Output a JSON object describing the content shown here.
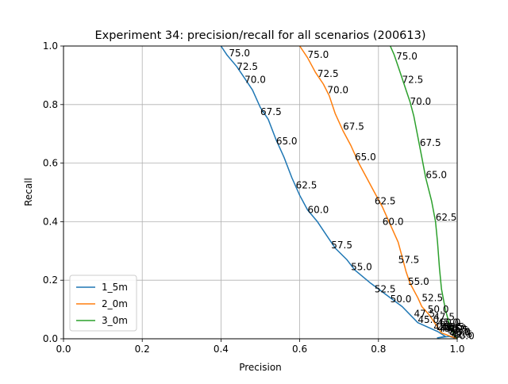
{
  "chart_data": {
    "type": "line",
    "title": "Experiment 34: precision/recall for all scenarios (200613)",
    "xlabel": "Precision",
    "ylabel": "Recall",
    "xlim": [
      0.0,
      1.0
    ],
    "ylim": [
      0.0,
      1.0
    ],
    "xticks": [
      "0.0",
      "0.2",
      "0.4",
      "0.6",
      "0.8",
      "1.0"
    ],
    "yticks": [
      "0.0",
      "0.2",
      "0.4",
      "0.6",
      "0.8",
      "1.0"
    ],
    "grid": true,
    "legend_position": "lower-left",
    "series": [
      {
        "name": "1_5m",
        "color": "#1f77b4",
        "points": [
          [
            0.4,
            1.0
          ],
          [
            0.415,
            0.97
          ],
          [
            0.44,
            0.93
          ],
          [
            0.46,
            0.89
          ],
          [
            0.48,
            0.85
          ],
          [
            0.5,
            0.79
          ],
          [
            0.52,
            0.75
          ],
          [
            0.54,
            0.68
          ],
          [
            0.56,
            0.62
          ],
          [
            0.58,
            0.55
          ],
          [
            0.6,
            0.49
          ],
          [
            0.62,
            0.44
          ],
          [
            0.645,
            0.4
          ],
          [
            0.67,
            0.35
          ],
          [
            0.69,
            0.31
          ],
          [
            0.72,
            0.27
          ],
          [
            0.74,
            0.235
          ],
          [
            0.78,
            0.19
          ],
          [
            0.82,
            0.15
          ],
          [
            0.86,
            0.11
          ],
          [
            0.9,
            0.055
          ],
          [
            0.95,
            0.025
          ],
          [
            0.97,
            0.008
          ],
          [
            0.95,
            0.003
          ],
          [
            0.98,
            0.008
          ],
          [
            1.0,
            0.0
          ]
        ],
        "labels": [
          {
            "text": "75.0",
            "x": 0.42,
            "y": 0.975
          },
          {
            "text": "72.5",
            "x": 0.44,
            "y": 0.93
          },
          {
            "text": "70.0",
            "x": 0.46,
            "y": 0.885
          },
          {
            "text": "67.5",
            "x": 0.5,
            "y": 0.775
          },
          {
            "text": "65.0",
            "x": 0.54,
            "y": 0.675
          },
          {
            "text": "62.5",
            "x": 0.59,
            "y": 0.525
          },
          {
            "text": "60.0",
            "x": 0.62,
            "y": 0.44
          },
          {
            "text": "57.5",
            "x": 0.68,
            "y": 0.32
          },
          {
            "text": "55.0",
            "x": 0.73,
            "y": 0.245
          },
          {
            "text": "52.5",
            "x": 0.79,
            "y": 0.17
          },
          {
            "text": "50.0",
            "x": 0.83,
            "y": 0.135
          },
          {
            "text": "47.5",
            "x": 0.89,
            "y": 0.085
          },
          {
            "text": "45.0",
            "x": 0.9,
            "y": 0.065
          },
          {
            "text": "42.5",
            "x": 0.94,
            "y": 0.04
          },
          {
            "text": "40.0",
            "x": 0.95,
            "y": 0.035
          }
        ]
      },
      {
        "name": "2_0m",
        "color": "#ff7f0e",
        "points": [
          [
            0.6,
            1.0
          ],
          [
            0.62,
            0.96
          ],
          [
            0.64,
            0.91
          ],
          [
            0.66,
            0.87
          ],
          [
            0.675,
            0.83
          ],
          [
            0.69,
            0.77
          ],
          [
            0.71,
            0.71
          ],
          [
            0.73,
            0.66
          ],
          [
            0.75,
            0.6
          ],
          [
            0.77,
            0.55
          ],
          [
            0.79,
            0.5
          ],
          [
            0.81,
            0.45
          ],
          [
            0.83,
            0.39
          ],
          [
            0.85,
            0.33
          ],
          [
            0.86,
            0.28
          ],
          [
            0.87,
            0.23
          ],
          [
            0.88,
            0.19
          ],
          [
            0.9,
            0.14
          ],
          [
            0.91,
            0.11
          ],
          [
            0.93,
            0.08
          ],
          [
            0.94,
            0.06
          ],
          [
            0.95,
            0.04
          ],
          [
            0.96,
            0.02
          ],
          [
            0.98,
            0.01
          ],
          [
            1.0,
            0.0
          ]
        ],
        "labels": [
          {
            "text": "75.0",
            "x": 0.62,
            "y": 0.97
          },
          {
            "text": "72.5",
            "x": 0.645,
            "y": 0.905
          },
          {
            "text": "70.0",
            "x": 0.67,
            "y": 0.85
          },
          {
            "text": "67.5",
            "x": 0.71,
            "y": 0.725
          },
          {
            "text": "65.0",
            "x": 0.74,
            "y": 0.62
          },
          {
            "text": "62.5",
            "x": 0.79,
            "y": 0.47
          },
          {
            "text": "60.0",
            "x": 0.81,
            "y": 0.4
          },
          {
            "text": "57.5",
            "x": 0.85,
            "y": 0.27
          },
          {
            "text": "55.0",
            "x": 0.875,
            "y": 0.195
          },
          {
            "text": "52.5",
            "x": 0.91,
            "y": 0.14
          },
          {
            "text": "50.0",
            "x": 0.925,
            "y": 0.1
          },
          {
            "text": "47.5",
            "x": 0.94,
            "y": 0.075
          },
          {
            "text": "45.0",
            "x": 0.95,
            "y": 0.055
          },
          {
            "text": "42.5",
            "x": 0.96,
            "y": 0.04
          },
          {
            "text": "40.0",
            "x": 0.97,
            "y": 0.035
          }
        ]
      },
      {
        "name": "3_0m",
        "color": "#2ca02c",
        "points": [
          [
            0.83,
            1.0
          ],
          [
            0.84,
            0.97
          ],
          [
            0.85,
            0.93
          ],
          [
            0.86,
            0.89
          ],
          [
            0.87,
            0.85
          ],
          [
            0.88,
            0.81
          ],
          [
            0.89,
            0.76
          ],
          [
            0.9,
            0.69
          ],
          [
            0.91,
            0.62
          ],
          [
            0.92,
            0.55
          ],
          [
            0.935,
            0.47
          ],
          [
            0.945,
            0.4
          ],
          [
            0.95,
            0.33
          ],
          [
            0.955,
            0.24
          ],
          [
            0.96,
            0.17
          ],
          [
            0.97,
            0.1
          ],
          [
            0.98,
            0.05
          ],
          [
            0.99,
            0.02
          ],
          [
            1.0,
            0.0
          ]
        ],
        "labels": [
          {
            "text": "75.0",
            "x": 0.845,
            "y": 0.965
          },
          {
            "text": "72.5",
            "x": 0.86,
            "y": 0.885
          },
          {
            "text": "70.0",
            "x": 0.88,
            "y": 0.81
          },
          {
            "text": "67.5",
            "x": 0.905,
            "y": 0.67
          },
          {
            "text": "65.0",
            "x": 0.92,
            "y": 0.56
          },
          {
            "text": "62.5",
            "x": 0.945,
            "y": 0.415
          },
          {
            "text": "60.0",
            "x": 0.955,
            "y": 0.055
          },
          {
            "text": "57.5",
            "x": 0.965,
            "y": 0.04
          },
          {
            "text": "55.0",
            "x": 0.97,
            "y": 0.035
          },
          {
            "text": "52.5",
            "x": 0.975,
            "y": 0.03
          },
          {
            "text": "50.0",
            "x": 0.98,
            "y": 0.025
          },
          {
            "text": "47.5",
            "x": 0.955,
            "y": 0.035
          },
          {
            "text": "45.0",
            "x": 0.98,
            "y": 0.02
          },
          {
            "text": "42.5",
            "x": 0.985,
            "y": 0.015
          },
          {
            "text": "40.0",
            "x": 0.99,
            "y": 0.01
          }
        ]
      }
    ]
  }
}
